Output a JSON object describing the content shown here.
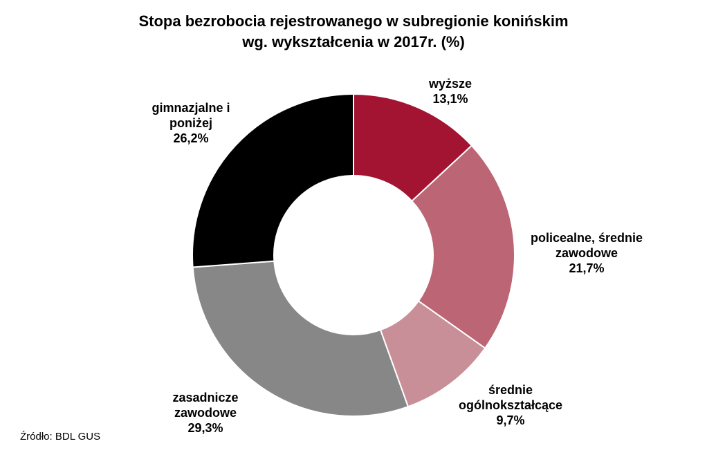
{
  "chart_data": {
    "type": "pie",
    "variant": "donut",
    "title": "Stopa bezrobocia rejestrowanego w subregionie konińskim",
    "subtitle": "wg. wykształcenia w 2017r. (%)",
    "slices": [
      {
        "label_lines": [
          "wyższe"
        ],
        "value": 13.1,
        "value_label": "13,1%",
        "color": "#a31432"
      },
      {
        "label_lines": [
          "policealne, średnie",
          "zawodowe"
        ],
        "value": 21.7,
        "value_label": "21,7%",
        "color": "#bc6675"
      },
      {
        "label_lines": [
          "średnie",
          "ogólnokształcące"
        ],
        "value": 9.7,
        "value_label": "9,7%",
        "color": "#c98f98"
      },
      {
        "label_lines": [
          "zasadnicze",
          "zawodowe"
        ],
        "value": 29.3,
        "value_label": "29,3%",
        "color": "#878787"
      },
      {
        "label_lines": [
          "gimnazjalne i",
          "poniżej"
        ],
        "value": 26.2,
        "value_label": "26,2%",
        "color": "#000000"
      }
    ],
    "legend": "none"
  },
  "source": "Źródło: BDL GUS"
}
